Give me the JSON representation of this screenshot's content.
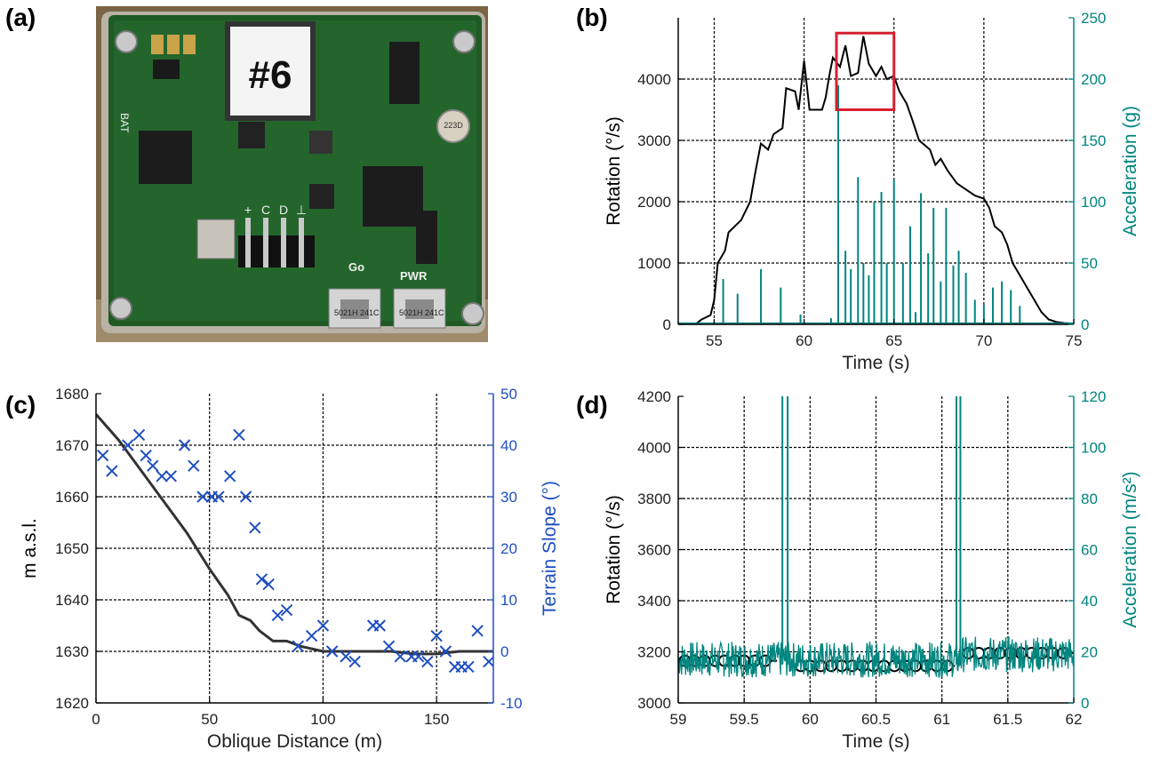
{
  "figure": {
    "panel_labels": [
      "(a)",
      "(b)",
      "(c)",
      "(d)"
    ],
    "colors": {
      "black": "#111111",
      "teal": "#00857f",
      "blue": "#1f4fbf",
      "red": "#d62030",
      "terrain": "#333333"
    }
  },
  "photo": {
    "description_icon": "circuit-board-photo",
    "tag_text": "#6",
    "silk": {
      "bat": "BAT",
      "go": "Go",
      "pwr": "PWR",
      "chip1": "5021H\n241C",
      "chip2": "5021H\n241C",
      "pins": [
        "+",
        "C",
        "D",
        "⊥"
      ],
      "cap": "223D"
    }
  },
  "chart_data": [
    {
      "id": "b",
      "type": "line",
      "xlabel": "Time (s)",
      "ylabel": "Rotation (°/s)",
      "y2label": "Acceleration (g)",
      "xlim": [
        53,
        75
      ],
      "ylim": [
        0,
        5000
      ],
      "y2lim": [
        0,
        250
      ],
      "xticks": [
        55,
        60,
        65,
        70,
        75
      ],
      "yticks": [
        0,
        1000,
        2000,
        3000,
        4000
      ],
      "y2ticks": [
        0,
        50,
        100,
        150,
        200,
        250
      ],
      "vgrid": [
        55,
        60,
        65,
        70
      ],
      "hgrid": [
        1000,
        2000,
        3000,
        4000
      ],
      "highlight_box": {
        "x": [
          61.8,
          65
        ],
        "y": [
          3500,
          4750
        ]
      },
      "series": [
        {
          "axis": "left",
          "points": [
            [
              53,
              0
            ],
            [
              54,
              10
            ],
            [
              54.3,
              80
            ],
            [
              54.8,
              150
            ],
            [
              55,
              400
            ],
            [
              55.2,
              1000
            ],
            [
              55.6,
              1200
            ],
            [
              55.8,
              1500
            ],
            [
              56.5,
              1700
            ],
            [
              57,
              2000
            ],
            [
              57.3,
              2500
            ],
            [
              57.6,
              2950
            ],
            [
              58,
              2850
            ],
            [
              58.3,
              3100
            ],
            [
              58.8,
              3200
            ],
            [
              59,
              3850
            ],
            [
              59.5,
              3800
            ],
            [
              59.7,
              3500
            ],
            [
              60,
              4300
            ],
            [
              60.3,
              3500
            ],
            [
              60.6,
              3500
            ],
            [
              61,
              3500
            ],
            [
              61.2,
              3700
            ],
            [
              61.4,
              4050
            ],
            [
              61.6,
              4350
            ],
            [
              62,
              4200
            ],
            [
              62.3,
              4550
            ],
            [
              62.6,
              4050
            ],
            [
              63,
              4100
            ],
            [
              63.3,
              4700
            ],
            [
              63.6,
              4250
            ],
            [
              64,
              4050
            ],
            [
              64.3,
              4200
            ],
            [
              64.6,
              4000
            ],
            [
              65,
              4050
            ],
            [
              65.3,
              3800
            ],
            [
              65.7,
              3600
            ],
            [
              66,
              3350
            ],
            [
              66.4,
              3000
            ],
            [
              66.8,
              2900
            ],
            [
              67,
              2850
            ],
            [
              67.3,
              2600
            ],
            [
              67.6,
              2700
            ],
            [
              68,
              2500
            ],
            [
              68.5,
              2300
            ],
            [
              69,
              2200
            ],
            [
              69.5,
              2100
            ],
            [
              70,
              2050
            ],
            [
              70.3,
              1900
            ],
            [
              70.6,
              1600
            ],
            [
              71,
              1500
            ],
            [
              71.3,
              1300
            ],
            [
              71.6,
              1000
            ],
            [
              72,
              800
            ],
            [
              72.4,
              600
            ],
            [
              72.8,
              400
            ],
            [
              73.2,
              200
            ],
            [
              73.6,
              80
            ],
            [
              74,
              40
            ],
            [
              74.5,
              20
            ],
            [
              75,
              10
            ]
          ]
        },
        {
          "axis": "right",
          "spikes": [
            [
              55.5,
              37
            ],
            [
              56.3,
              25
            ],
            [
              57.6,
              45
            ],
            [
              58.7,
              30
            ],
            [
              59.8,
              8
            ],
            [
              61.5,
              5
            ],
            [
              61.9,
              195
            ],
            [
              62.3,
              60
            ],
            [
              62.6,
              45
            ],
            [
              63,
              120
            ],
            [
              63.3,
              50
            ],
            [
              63.6,
              40
            ],
            [
              63.9,
              100
            ],
            [
              64.3,
              108
            ],
            [
              64.6,
              50
            ],
            [
              65,
              118
            ],
            [
              65.5,
              50
            ],
            [
              65.9,
              80
            ],
            [
              66.2,
              10
            ],
            [
              66.5,
              107
            ],
            [
              66.9,
              58
            ],
            [
              67.2,
              95
            ],
            [
              67.6,
              35
            ],
            [
              67.9,
              95
            ],
            [
              68.3,
              48
            ],
            [
              68.6,
              60
            ],
            [
              69,
              42
            ],
            [
              69.5,
              20
            ],
            [
              70,
              16
            ],
            [
              70.5,
              30
            ],
            [
              71,
              35
            ],
            [
              71.5,
              28
            ],
            [
              72,
              15
            ]
          ]
        }
      ]
    },
    {
      "id": "c",
      "type": "line",
      "xlabel": "Oblique Distance (m)",
      "ylabel": "m a.s.l.",
      "y2label": "Terrain Slope (°)",
      "xlim": [
        0,
        175
      ],
      "ylim": [
        1620,
        1680
      ],
      "y2lim": [
        -10,
        50
      ],
      "xticks": [
        0,
        50,
        100,
        150
      ],
      "yticks": [
        1620,
        1630,
        1640,
        1650,
        1660,
        1670,
        1680
      ],
      "y2ticks": [
        -10,
        0,
        10,
        20,
        30,
        40,
        50
      ],
      "vgrid": [
        50,
        100,
        150
      ],
      "hgrid": [
        1630,
        1640,
        1650,
        1660,
        1670
      ],
      "series": [
        {
          "axis": "left",
          "points": [
            [
              0,
              1676
            ],
            [
              10,
              1671
            ],
            [
              20,
              1665
            ],
            [
              30,
              1659
            ],
            [
              40,
              1653
            ],
            [
              50,
              1646
            ],
            [
              58,
              1641
            ],
            [
              63,
              1637
            ],
            [
              68,
              1636
            ],
            [
              72,
              1634
            ],
            [
              78,
              1632
            ],
            [
              84,
              1632
            ],
            [
              90,
              1631
            ],
            [
              100,
              1630
            ],
            [
              110,
              1630
            ],
            [
              120,
              1630
            ],
            [
              130,
              1630
            ],
            [
              140,
              1629.5
            ],
            [
              150,
              1629.5
            ],
            [
              160,
              1630
            ],
            [
              175,
              1630
            ]
          ]
        },
        {
          "axis": "right",
          "markers": [
            [
              3,
              38
            ],
            [
              7,
              35
            ],
            [
              14,
              40
            ],
            [
              19,
              42
            ],
            [
              22,
              38
            ],
            [
              25,
              36
            ],
            [
              29,
              34
            ],
            [
              33,
              34
            ],
            [
              39,
              40
            ],
            [
              43,
              36
            ],
            [
              47,
              30
            ],
            [
              51,
              30
            ],
            [
              54,
              30
            ],
            [
              59,
              34
            ],
            [
              63,
              42
            ],
            [
              66,
              30
            ],
            [
              70,
              24
            ],
            [
              73,
              14
            ],
            [
              76,
              13
            ],
            [
              80,
              7
            ],
            [
              84,
              8
            ],
            [
              89,
              1
            ],
            [
              95,
              3
            ],
            [
              100,
              5
            ],
            [
              104,
              0
            ],
            [
              110,
              -1
            ],
            [
              114,
              -2
            ],
            [
              122,
              5
            ],
            [
              125,
              5
            ],
            [
              129,
              1
            ],
            [
              134,
              -1
            ],
            [
              139,
              -1
            ],
            [
              142,
              -1
            ],
            [
              146,
              -2
            ],
            [
              150,
              3
            ],
            [
              154,
              0
            ],
            [
              158,
              -3
            ],
            [
              161,
              -3
            ],
            [
              164,
              -3
            ],
            [
              168,
              4
            ],
            [
              173,
              -2
            ]
          ]
        }
      ]
    },
    {
      "id": "d",
      "type": "line",
      "xlabel": "Time (s)",
      "ylabel": "Rotation (°/s)",
      "y2label": "Acceleration (m/s²)",
      "xlim": [
        59,
        62
      ],
      "ylim": [
        3000,
        4200
      ],
      "y2lim": [
        0,
        120
      ],
      "xticks": [
        "59",
        "59.5",
        "60",
        "60.5",
        "61",
        "61.5",
        "62"
      ],
      "yticks": [
        3000,
        3200,
        3400,
        3600,
        3800,
        4000,
        4200
      ],
      "y2ticks": [
        0,
        20,
        40,
        60,
        80,
        100,
        120
      ],
      "vgrid": [
        59.5,
        60,
        60.5,
        61,
        61.5
      ],
      "hgrid": [
        3200,
        3400,
        3600,
        3800,
        4000
      ],
      "series": [
        {
          "axis": "left",
          "steps": [
            [
              59,
              59.75,
              3165
            ],
            [
              59.85,
              61.1,
              3145
            ],
            [
              61.15,
              62,
              3195
            ]
          ],
          "markers": [
            [
              59.05,
              3165
            ],
            [
              59.12,
              3165
            ],
            [
              59.2,
              3165
            ],
            [
              59.28,
              3165
            ],
            [
              59.35,
              3165
            ],
            [
              59.43,
              3165
            ],
            [
              59.5,
              3165
            ],
            [
              59.58,
              3165
            ],
            [
              59.66,
              3165
            ],
            [
              59.93,
              3145
            ],
            [
              60.0,
              3145
            ],
            [
              60.08,
              3145
            ],
            [
              60.16,
              3145
            ],
            [
              60.24,
              3145
            ],
            [
              60.32,
              3145
            ],
            [
              60.4,
              3145
            ],
            [
              60.48,
              3145
            ],
            [
              60.56,
              3145
            ],
            [
              60.64,
              3145
            ],
            [
              60.72,
              3145
            ],
            [
              60.8,
              3145
            ],
            [
              60.88,
              3145
            ],
            [
              60.96,
              3145
            ],
            [
              61.04,
              3145
            ],
            [
              61.2,
              3195
            ],
            [
              61.28,
              3195
            ],
            [
              61.36,
              3195
            ],
            [
              61.44,
              3195
            ],
            [
              61.52,
              3195
            ],
            [
              61.6,
              3195
            ],
            [
              61.68,
              3195
            ],
            [
              61.76,
              3195
            ],
            [
              61.84,
              3195
            ],
            [
              61.92,
              3195
            ]
          ]
        },
        {
          "axis": "right",
          "noise_level": 17,
          "spikes": [
            [
              59.79,
              120
            ],
            [
              59.83,
              120
            ],
            [
              61.11,
              120
            ],
            [
              61.14,
              120
            ]
          ]
        }
      ]
    }
  ]
}
